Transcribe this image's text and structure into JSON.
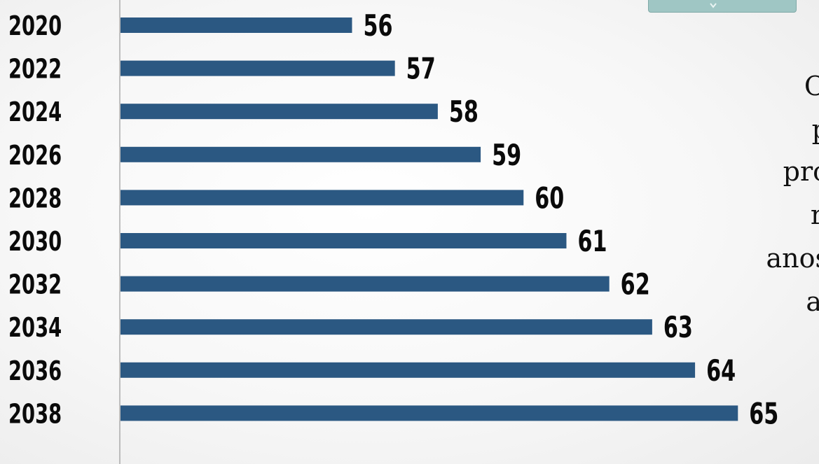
{
  "chart_data": {
    "type": "bar",
    "orientation": "horizontal",
    "categories": [
      "2020",
      "2022",
      "2024",
      "2026",
      "2028",
      "2030",
      "2032",
      "2034",
      "2036",
      "2038"
    ],
    "values": [
      56,
      57,
      58,
      59,
      60,
      61,
      62,
      63,
      64,
      65
    ],
    "title": "",
    "xlabel": "",
    "ylabel": "",
    "data_labels": true,
    "grid": false,
    "legend": "none",
    "bar_color": "#2b5882",
    "tab_color": "#9fc6c4"
  },
  "side_text": {
    "lines": [
      "O",
      "p",
      "pro",
      "r",
      "anos",
      "a"
    ]
  }
}
